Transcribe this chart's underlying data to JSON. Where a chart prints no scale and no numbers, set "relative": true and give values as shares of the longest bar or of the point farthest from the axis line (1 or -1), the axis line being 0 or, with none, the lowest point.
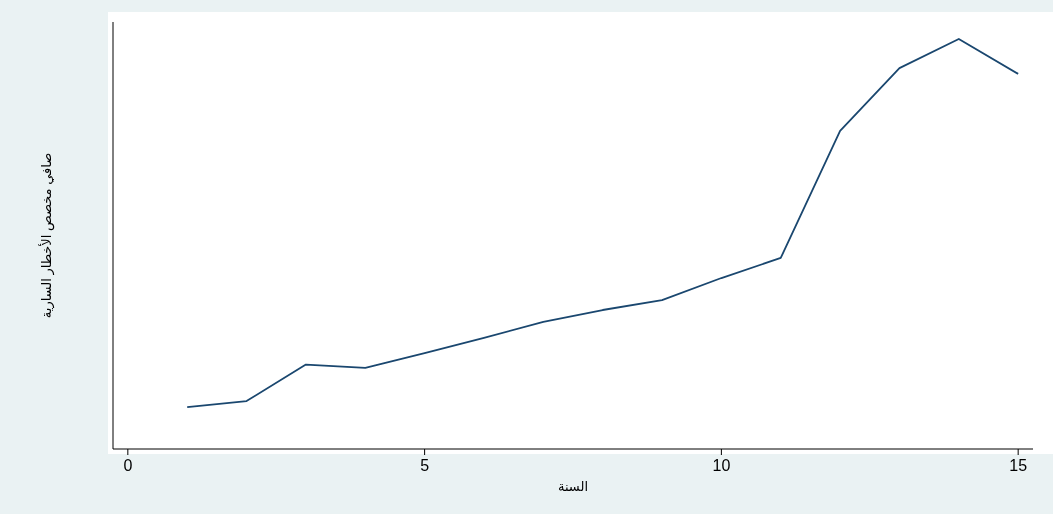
{
  "chart_data": {
    "type": "line",
    "xlabel": "السنة",
    "ylabel": "صافي مخصص الأخطار السارية",
    "relative": true,
    "x": [
      1,
      2,
      3,
      4,
      5,
      6,
      7,
      8,
      9,
      10,
      11,
      12,
      13,
      14,
      15
    ],
    "series": [
      {
        "color": "#1a476f",
        "values": [
          0.102,
          0.117,
          0.206,
          0.198,
          0.234,
          0.271,
          0.31,
          0.339,
          0.363,
          0.417,
          0.466,
          0.776,
          0.929,
          1,
          0.915
        ]
      }
    ],
    "xlim": [
      -0.25,
      15.25
    ],
    "xticks": [
      0,
      5,
      10,
      15
    ]
  }
}
